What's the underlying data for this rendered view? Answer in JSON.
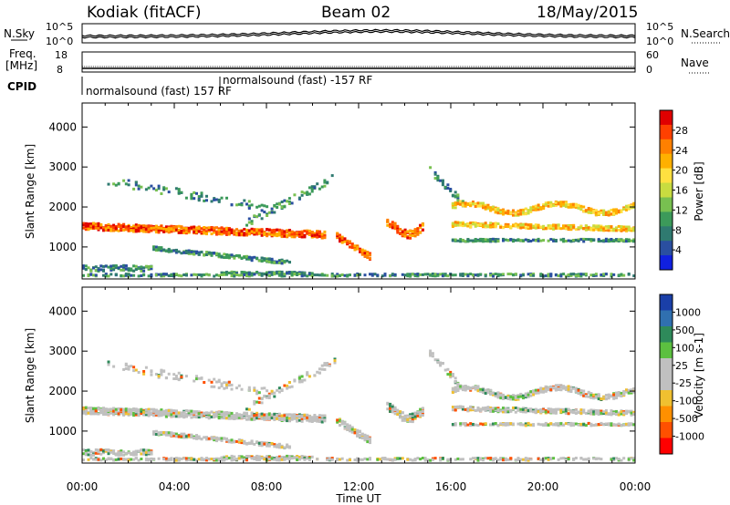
{
  "header": {
    "station": "Kodiak (fitACF)",
    "beam": "Beam 02",
    "date": "18/May/2015"
  },
  "chart_data": [
    {
      "type": "line",
      "name": "noise-panel",
      "left_label": "N.Sky",
      "right_label": "N.Search",
      "left_ticks": [
        "10^5",
        "10^0"
      ],
      "right_ticks": [
        "10^5",
        "10^0"
      ]
    },
    {
      "type": "line",
      "name": "frequency-nave-panel",
      "left_label_1": "Freq.",
      "left_label_2": "[MHz]",
      "right_label": "Nave",
      "left_ticks": [
        "18",
        "8"
      ],
      "right_ticks": [
        "60",
        "0"
      ],
      "cpid_label": "CPID",
      "annotations": [
        "normalsound (fast) 157 RF",
        "normalsound (fast) -157 RF"
      ]
    },
    {
      "type": "heatmap",
      "name": "power",
      "ylabel": "Slant Range [km]",
      "ylim": [
        200,
        4600
      ],
      "yticks": [
        "1000",
        "2000",
        "3000",
        "4000"
      ],
      "xlim_hours": [
        0,
        24
      ],
      "colorbar_label": "Power [dB]",
      "colorbar_ticks": [
        "28",
        "24",
        "20",
        "16",
        "12",
        "8",
        "4"
      ],
      "colorbar_colors": [
        "#e00000",
        "#ff4000",
        "#ff8000",
        "#ffb000",
        "#ffe040",
        "#c8dc40",
        "#78c050",
        "#3c9a5a",
        "#2f7a70",
        "#2a4fa0",
        "#1020e0"
      ]
    },
    {
      "type": "heatmap",
      "name": "velocity",
      "ylabel": "Slant Range [km]",
      "ylim": [
        200,
        4600
      ],
      "yticks": [
        "1000",
        "2000",
        "3000",
        "4000"
      ],
      "xlim_hours": [
        0,
        24
      ],
      "colorbar_label": "Velocity [m s-1]",
      "colorbar_ticks": [
        "1000",
        "500",
        "100",
        "25",
        "-25",
        "-100",
        "-500",
        "-1000"
      ],
      "colorbar_colors": [
        "#1a3fa8",
        "#3070b0",
        "#2e8a5a",
        "#5cc040",
        "#c0c0c0",
        "#c0c0c0",
        "#f0c030",
        "#ff9000",
        "#ff5000",
        "#ff0000"
      ]
    }
  ],
  "xaxis": {
    "ticks": [
      "00:00",
      "04:00",
      "08:00",
      "12:00",
      "16:00",
      "20:00",
      "00:00"
    ],
    "label": "Time UT"
  }
}
